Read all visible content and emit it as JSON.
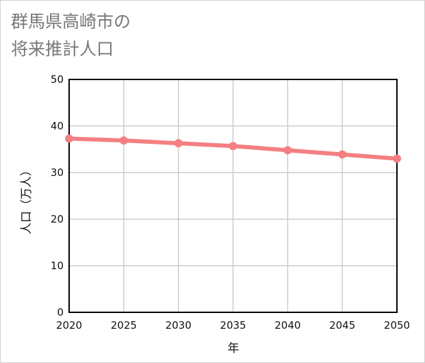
{
  "chart_data": {
    "type": "line",
    "title_lines": [
      "群馬県高崎市の",
      "将来推計人口"
    ],
    "xlabel": "年",
    "ylabel": "人口（万人）",
    "x": [
      2020,
      2025,
      2030,
      2035,
      2040,
      2045,
      2050
    ],
    "x_ticks": [
      "2020",
      "2025",
      "2030",
      "2035",
      "2040",
      "2045",
      "2050"
    ],
    "ylim": [
      0,
      50
    ],
    "y_ticks": [
      "0",
      "10",
      "20",
      "30",
      "40",
      "50"
    ],
    "grid": true,
    "series": [
      {
        "name": "人口",
        "values": [
          37.3,
          36.9,
          36.3,
          35.7,
          34.8,
          33.9,
          33.0
        ],
        "color": "#f47f82"
      }
    ]
  }
}
